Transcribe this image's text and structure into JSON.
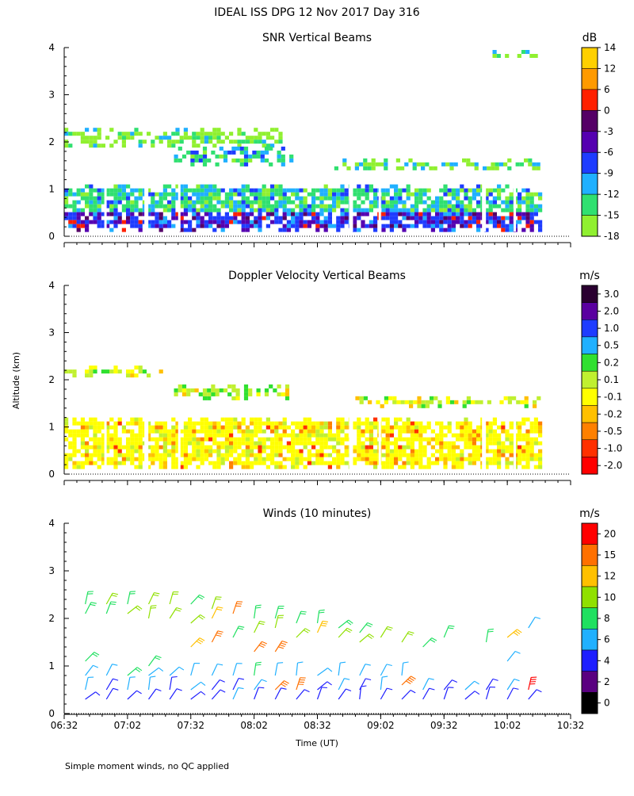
{
  "page": {
    "title": "IDEAL ISS DPG  12 Nov 2017 Day 316",
    "y_axis_label": "Altitude (km)",
    "x_axis_label": "Time (UT)",
    "footnote": "Simple moment winds, no QC applied"
  },
  "chart_data": [
    {
      "type": "heatmap",
      "title": "SNR Vertical Beams",
      "ylim": [
        0,
        4
      ],
      "yticks": [
        0,
        1,
        2,
        3,
        4
      ],
      "xlim_hours": [
        6.5333,
        10.5333
      ],
      "colorbar": {
        "unit": "dB",
        "labels": [
          "14",
          "12",
          "6",
          "0",
          "-3",
          "-6",
          "-9",
          "-12",
          "-15",
          "-18"
        ],
        "colors": [
          "#ffd000",
          "#ff9a00",
          "#ff2000",
          "#550066",
          "#5500b0",
          "#1e3cff",
          "#20b0ff",
          "#30e070",
          "#90f030"
        ]
      },
      "layers": [
        {
          "alt_min": 0.1,
          "alt_max": 1.1,
          "t_start": "06:32",
          "t_end": "10:17",
          "dominant": "mixed -18 to 6 dB"
        },
        {
          "alt_min": 1.95,
          "alt_max": 2.3,
          "t_start": "06:32",
          "t_end": "08:15",
          "dominant": "-18 to -15 dB"
        },
        {
          "alt_min": 1.5,
          "alt_max": 1.9,
          "t_start": "07:24",
          "t_end": "08:20",
          "dominant": "-15 to -9 dB"
        },
        {
          "alt_min": 1.4,
          "alt_max": 1.65,
          "t_start": "08:40",
          "t_end": "10:17",
          "dominant": "-18 to -15 dB"
        },
        {
          "alt_min": 3.85,
          "alt_max": 3.95,
          "t_start": "09:55",
          "t_end": "10:15",
          "dominant": "-18 to -15 dB"
        }
      ]
    },
    {
      "type": "heatmap",
      "title": "Doppler Velocity Vertical Beams",
      "ylim": [
        0,
        4
      ],
      "yticks": [
        0,
        1,
        2,
        3,
        4
      ],
      "xlim_hours": [
        6.5333,
        10.5333
      ],
      "colorbar": {
        "unit": "m/s",
        "labels": [
          "3.0",
          "2.0",
          "1.0",
          "0.5",
          "0.2",
          "0.1",
          "-0.1",
          "-0.2",
          "-0.5",
          "-1.0",
          "-2.0"
        ],
        "colors": [
          "#2a0030",
          "#5a00a0",
          "#1e3cff",
          "#20b0ff",
          "#30e030",
          "#c0f030",
          "#ffff00",
          "#ffc000",
          "#ff8000",
          "#ff3000",
          "#ff0000"
        ]
      },
      "layers": [
        {
          "alt_min": 0.15,
          "alt_max": 1.2,
          "t_start": "06:32",
          "t_end": "10:17",
          "dominant": "-0.1 to 0.1 m/s"
        },
        {
          "alt_min": 2.05,
          "alt_max": 2.3,
          "t_start": "06:32",
          "t_end": "07:17",
          "dominant": "-0.1 to 0.2 m/s"
        },
        {
          "alt_min": 1.6,
          "alt_max": 1.9,
          "t_start": "07:24",
          "t_end": "08:20",
          "dominant": "0.1 to 0.2 m/s"
        },
        {
          "alt_min": 1.45,
          "alt_max": 1.65,
          "t_start": "08:50",
          "t_end": "10:17",
          "dominant": "-0.1 to 0.1 m/s"
        }
      ]
    },
    {
      "type": "scatter",
      "title": "Winds (10 minutes)",
      "ylim": [
        0,
        4
      ],
      "yticks": [
        0,
        1,
        2,
        3,
        4
      ],
      "xlim_hours": [
        6.5333,
        10.5333
      ],
      "xticks": [
        "06:32",
        "07:02",
        "07:32",
        "08:02",
        "08:32",
        "09:02",
        "09:32",
        "10:02",
        "10:32"
      ],
      "colorbar": {
        "unit": "m/s",
        "labels": [
          "20",
          "15",
          "12",
          "10",
          "8",
          "6",
          "4",
          "2",
          "0"
        ],
        "colors": [
          "#ff0000",
          "#ff7000",
          "#ffc000",
          "#90e000",
          "#20e060",
          "#20b0ff",
          "#1e1eff",
          "#5a0080",
          "#000000"
        ]
      },
      "profiles": [
        {
          "time": "06:42",
          "winds": [
            [
              0.3,
              5
            ],
            [
              0.5,
              6
            ],
            [
              0.8,
              7
            ],
            [
              1.1,
              8
            ],
            [
              2.1,
              9
            ],
            [
              2.3,
              8
            ]
          ]
        },
        {
          "time": "06:52",
          "winds": [
            [
              0.3,
              4
            ],
            [
              0.5,
              5
            ],
            [
              0.8,
              6
            ],
            [
              2.1,
              9
            ],
            [
              2.3,
              10
            ]
          ]
        },
        {
          "time": "07:02",
          "winds": [
            [
              0.3,
              5
            ],
            [
              0.5,
              6
            ],
            [
              0.8,
              8
            ],
            [
              2.1,
              10
            ],
            [
              2.3,
              9
            ]
          ]
        },
        {
          "time": "07:12",
          "winds": [
            [
              0.3,
              5
            ],
            [
              0.5,
              6
            ],
            [
              0.8,
              7
            ],
            [
              1.0,
              9
            ],
            [
              2.0,
              10
            ],
            [
              2.3,
              11
            ]
          ]
        },
        {
          "time": "07:22",
          "winds": [
            [
              0.3,
              4
            ],
            [
              0.5,
              5
            ],
            [
              0.8,
              6
            ],
            [
              2.0,
              10
            ],
            [
              2.3,
              10
            ]
          ]
        },
        {
          "time": "07:32",
          "winds": [
            [
              0.3,
              5
            ],
            [
              0.5,
              6
            ],
            [
              0.8,
              7
            ],
            [
              1.4,
              13
            ],
            [
              1.9,
              10
            ],
            [
              2.3,
              9
            ]
          ]
        },
        {
          "time": "07:42",
          "winds": [
            [
              0.3,
              4
            ],
            [
              0.5,
              5
            ],
            [
              0.8,
              7
            ],
            [
              1.5,
              16
            ],
            [
              2.0,
              12
            ],
            [
              2.2,
              10
            ]
          ]
        },
        {
          "time": "07:52",
          "winds": [
            [
              0.3,
              6
            ],
            [
              0.5,
              5
            ],
            [
              0.8,
              6
            ],
            [
              1.6,
              9
            ],
            [
              2.1,
              16
            ]
          ]
        },
        {
          "time": "08:02",
          "winds": [
            [
              0.3,
              5
            ],
            [
              0.5,
              6
            ],
            [
              0.8,
              8
            ],
            [
              1.3,
              17
            ],
            [
              1.7,
              11
            ],
            [
              2.0,
              9
            ]
          ]
        },
        {
          "time": "08:12",
          "winds": [
            [
              0.3,
              4
            ],
            [
              0.5,
              15
            ],
            [
              0.8,
              6
            ],
            [
              1.3,
              18
            ],
            [
              1.8,
              10
            ],
            [
              2.0,
              9
            ]
          ]
        },
        {
          "time": "08:22",
          "winds": [
            [
              0.3,
              5
            ],
            [
              0.5,
              18
            ],
            [
              0.8,
              6
            ],
            [
              1.6,
              10
            ],
            [
              1.9,
              9
            ]
          ]
        },
        {
          "time": "08:32",
          "winds": [
            [
              0.3,
              4
            ],
            [
              0.5,
              5
            ],
            [
              0.8,
              6
            ],
            [
              1.7,
              14
            ],
            [
              1.9,
              9
            ]
          ]
        },
        {
          "time": "08:42",
          "winds": [
            [
              0.3,
              5
            ],
            [
              0.5,
              6
            ],
            [
              0.8,
              7
            ],
            [
              1.6,
              11
            ],
            [
              1.8,
              9
            ]
          ]
        },
        {
          "time": "08:52",
          "winds": [
            [
              0.3,
              4
            ],
            [
              0.5,
              5
            ],
            [
              0.8,
              6
            ],
            [
              1.5,
              10
            ],
            [
              1.7,
              9
            ]
          ]
        },
        {
          "time": "09:02",
          "winds": [
            [
              0.3,
              5
            ],
            [
              0.5,
              6
            ],
            [
              0.8,
              7
            ],
            [
              1.6,
              11
            ]
          ]
        },
        {
          "time": "09:12",
          "winds": [
            [
              0.3,
              4
            ],
            [
              0.6,
              18
            ],
            [
              0.8,
              6
            ],
            [
              1.5,
              10
            ]
          ]
        },
        {
          "time": "09:22",
          "winds": [
            [
              0.3,
              5
            ],
            [
              0.5,
              6
            ],
            [
              1.4,
              9
            ]
          ]
        },
        {
          "time": "09:32",
          "winds": [
            [
              0.3,
              4
            ],
            [
              0.5,
              5
            ],
            [
              1.6,
              8
            ]
          ]
        },
        {
          "time": "09:42",
          "winds": [
            [
              0.3,
              5
            ],
            [
              0.5,
              6
            ]
          ]
        },
        {
          "time": "09:52",
          "winds": [
            [
              0.3,
              4
            ],
            [
              0.5,
              5
            ],
            [
              1.5,
              8
            ]
          ]
        },
        {
          "time": "10:02",
          "winds": [
            [
              0.3,
              5
            ],
            [
              0.5,
              6
            ],
            [
              1.1,
              6
            ],
            [
              1.6,
              13
            ]
          ]
        },
        {
          "time": "10:12",
          "winds": [
            [
              0.3,
              4
            ],
            [
              0.5,
              20
            ],
            [
              1.8,
              6
            ]
          ]
        }
      ]
    }
  ]
}
